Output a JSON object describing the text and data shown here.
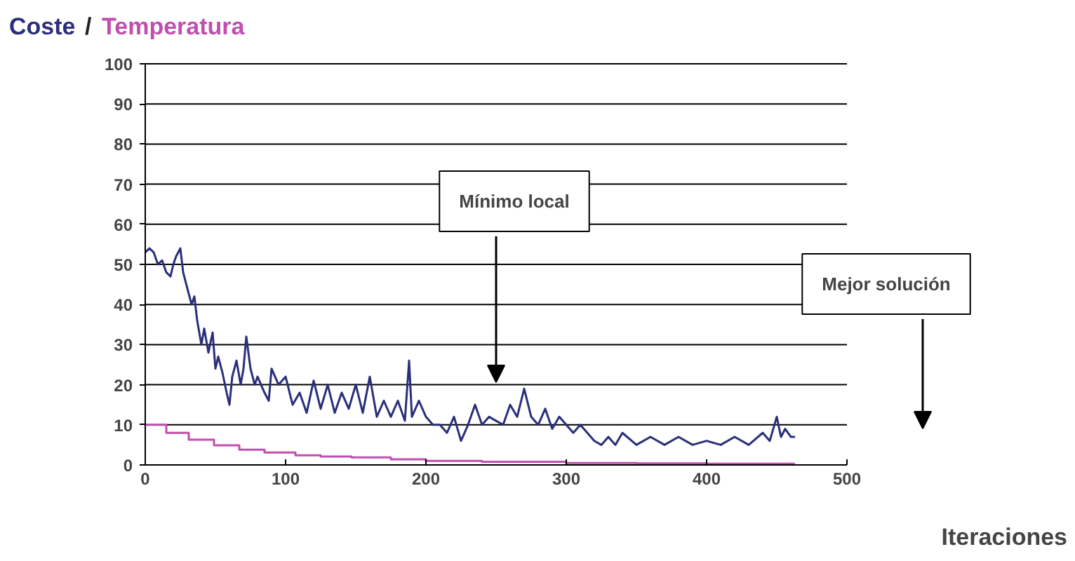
{
  "chart_data": {
    "type": "line",
    "xlabel": "Iteraciones",
    "xlim": [
      0,
      500
    ],
    "xticks": [
      0,
      100,
      200,
      300,
      400,
      500
    ],
    "ylim": [
      0,
      100
    ],
    "yticks": [
      0,
      10,
      20,
      30,
      40,
      50,
      60,
      70,
      80,
      90,
      100
    ],
    "grid": "y",
    "annotations": [
      "/",
      "Mínimo local",
      "Mejor solución"
    ],
    "series": [
      {
        "name": "Coste",
        "color": "#2a2f7a",
        "x": [
          0,
          3,
          6,
          9,
          12,
          15,
          18,
          20,
          22,
          25,
          27,
          30,
          33,
          35,
          37,
          40,
          42,
          45,
          48,
          50,
          52,
          55,
          58,
          60,
          62,
          65,
          68,
          70,
          72,
          75,
          78,
          80,
          85,
          88,
          90,
          95,
          100,
          105,
          110,
          115,
          120,
          125,
          130,
          135,
          140,
          145,
          150,
          155,
          160,
          165,
          170,
          175,
          180,
          185,
          188,
          190,
          195,
          200,
          205,
          210,
          215,
          220,
          225,
          230,
          235,
          240,
          245,
          250,
          255,
          260,
          265,
          270,
          275,
          280,
          285,
          290,
          295,
          300,
          305,
          310,
          315,
          320,
          325,
          330,
          335,
          340,
          350,
          360,
          370,
          380,
          390,
          400,
          410,
          420,
          430,
          440,
          445,
          450,
          453,
          456,
          460,
          463
        ],
        "values": [
          53,
          54,
          53,
          50,
          51,
          48,
          47,
          50,
          52,
          54,
          48,
          44,
          40,
          42,
          36,
          30,
          34,
          28,
          33,
          24,
          27,
          23,
          18,
          15,
          22,
          26,
          20,
          24,
          32,
          24,
          20,
          22,
          18,
          16,
          24,
          20,
          22,
          15,
          18,
          13,
          21,
          14,
          20,
          13,
          18,
          14,
          20,
          13,
          22,
          12,
          16,
          12,
          16,
          11,
          26,
          12,
          16,
          12,
          10,
          10,
          8,
          12,
          6,
          10,
          15,
          10,
          12,
          11,
          10,
          15,
          12,
          19,
          12,
          10,
          14,
          9,
          12,
          10,
          8,
          10,
          8,
          6,
          5,
          7,
          5,
          8,
          5,
          7,
          5,
          7,
          5,
          6,
          5,
          7,
          5,
          8,
          6,
          12,
          7,
          9,
          7,
          7
        ]
      },
      {
        "name": "Temperatura",
        "type": "step",
        "color": "#c04fae",
        "x": [
          0,
          15,
          31,
          49,
          67,
          85,
          107,
          125,
          147,
          175,
          200,
          240,
          300,
          350,
          400,
          463
        ],
        "values": [
          10,
          8,
          6.3,
          4.9,
          3.8,
          3.1,
          2.4,
          2.1,
          1.9,
          1.4,
          1,
          0.8,
          0.5,
          0.4,
          0.3,
          0.3
        ]
      }
    ]
  }
}
